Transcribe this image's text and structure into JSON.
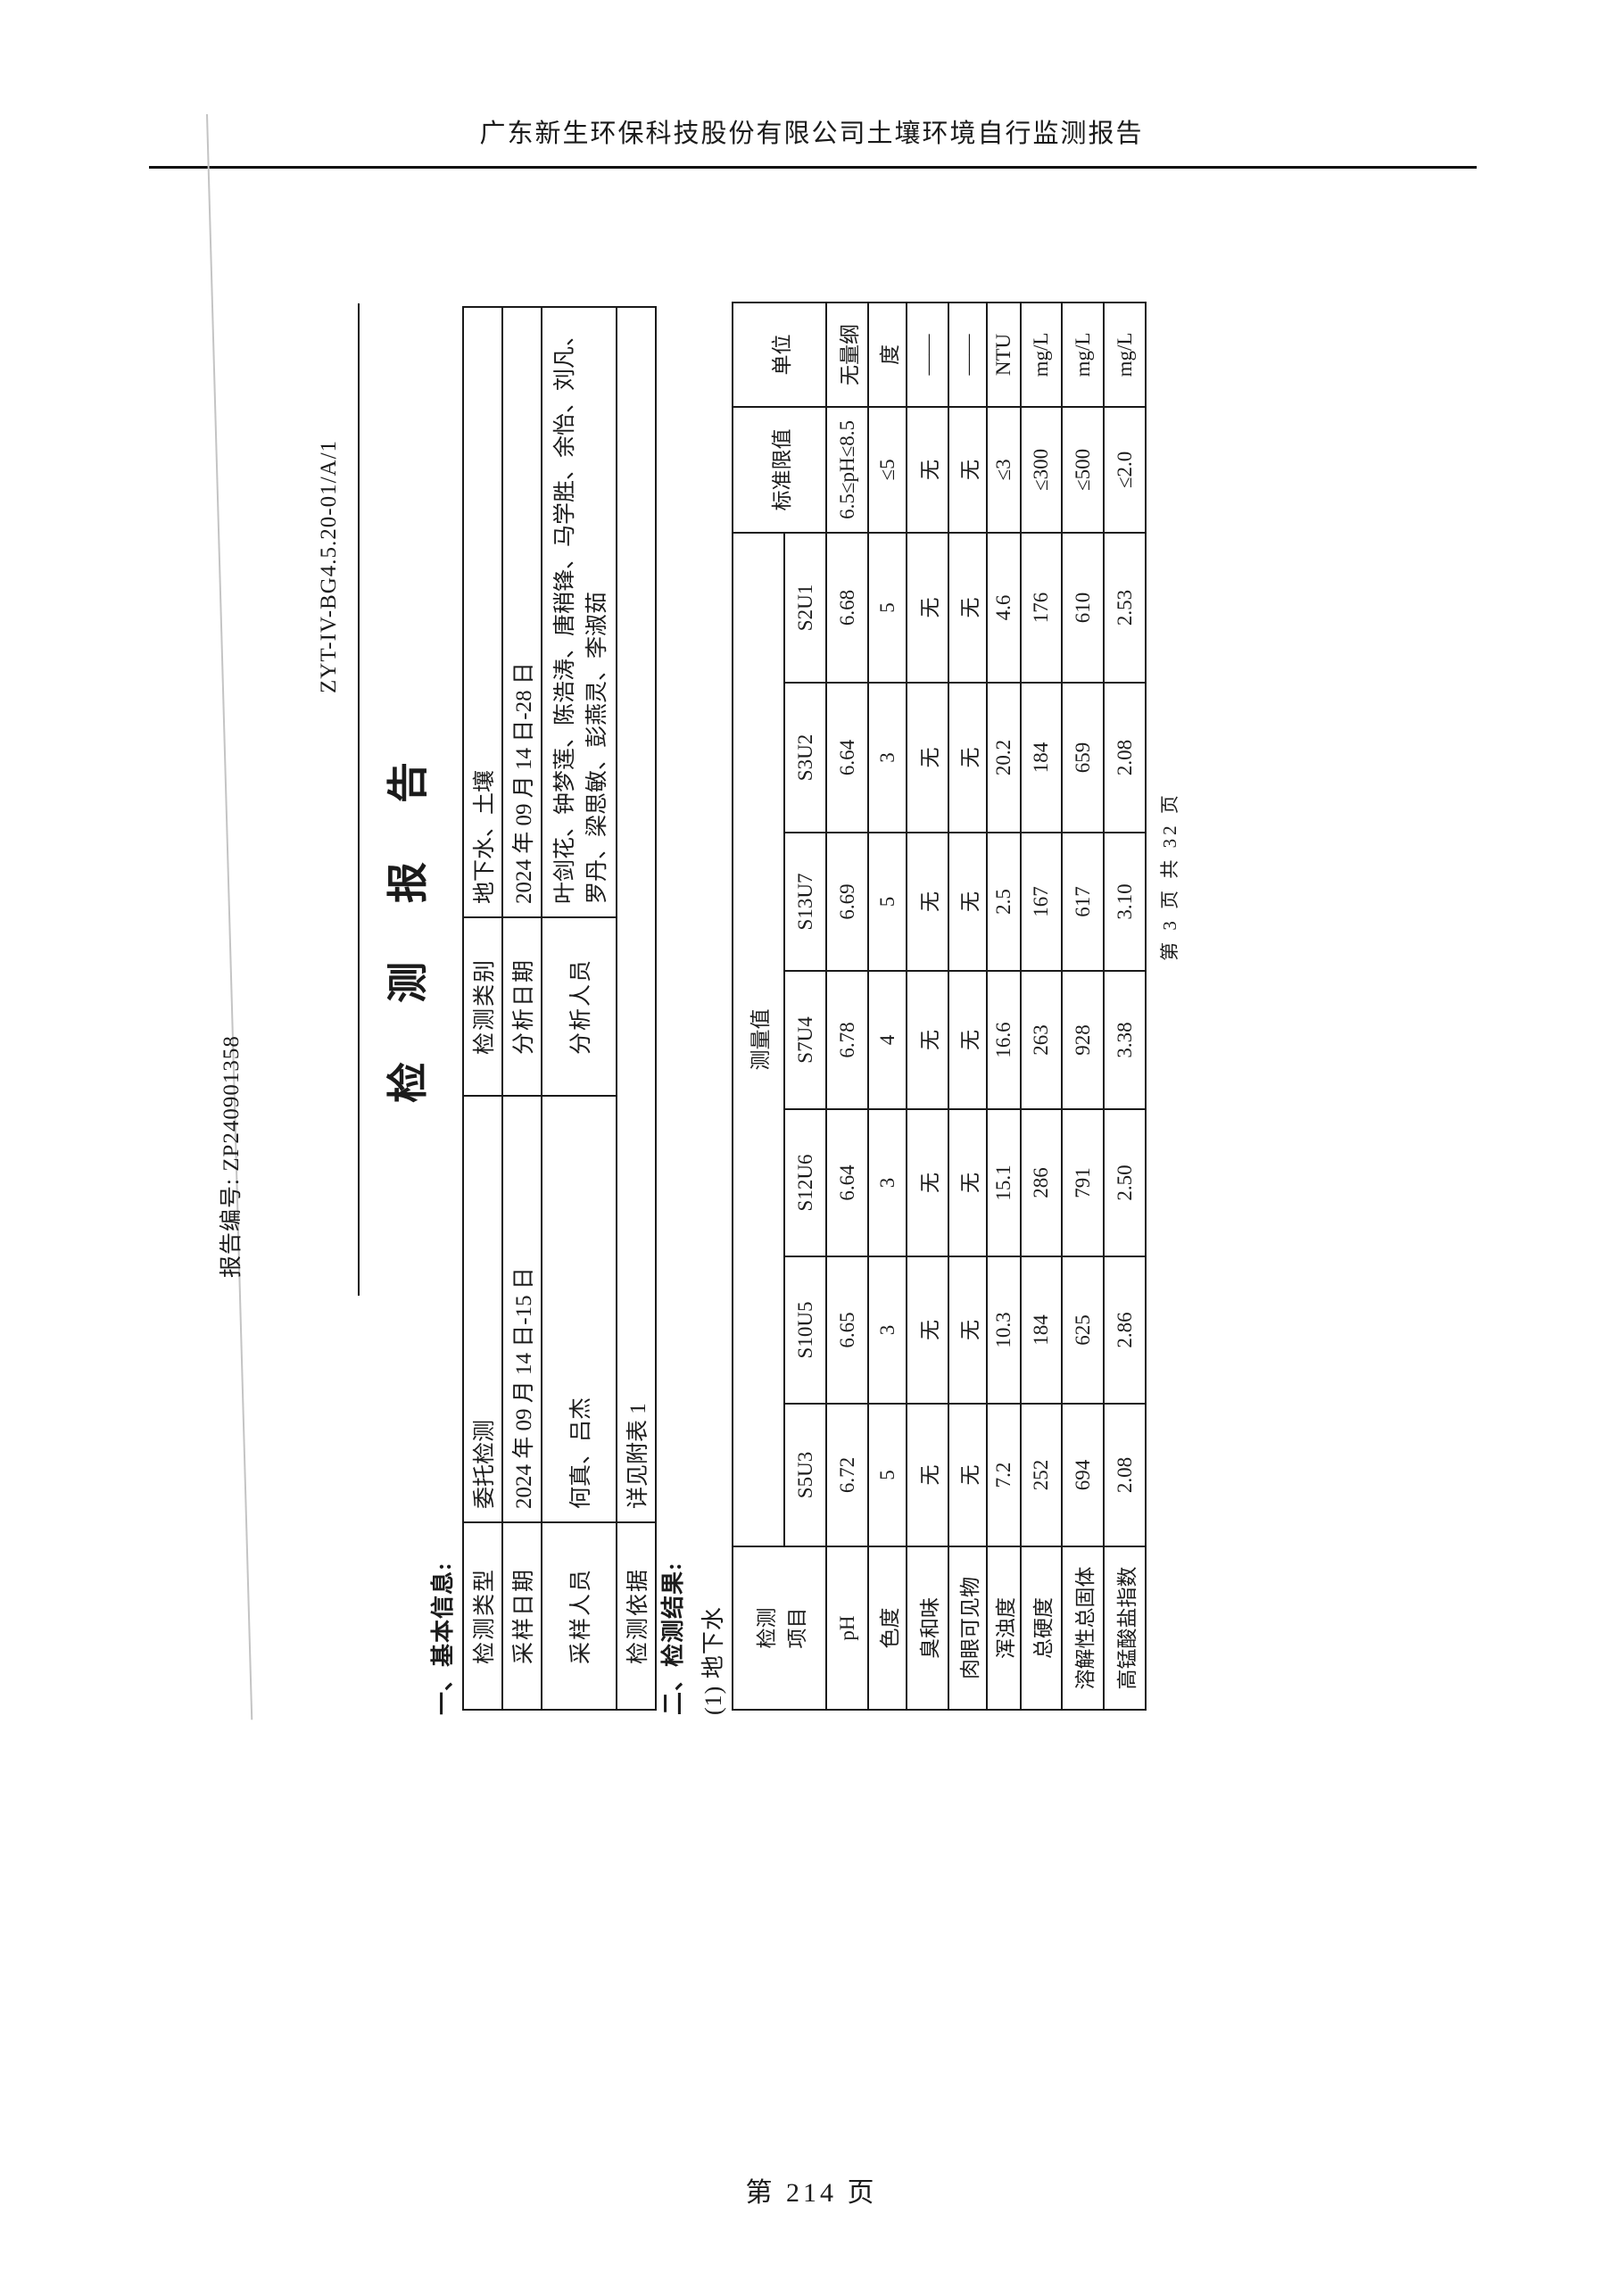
{
  "page_header": {
    "title": "广东新生环保科技股份有限公司土壤环境自行监测报告"
  },
  "report_header": {
    "report_no": "报告编号: ZP240901358",
    "doc_code": "ZYT-IV-BG4.5.20-01/A/1"
  },
  "report_title": "检测报告",
  "sections": {
    "basic_info_heading": "一、基本信息:",
    "results_heading": "二、检测结果:",
    "results_sub": "(1) 地下水"
  },
  "basic_info": {
    "rows": [
      {
        "cells": [
          {
            "t": "检测类型"
          },
          {
            "t": "委托检测"
          },
          {
            "t": "检测类别"
          },
          {
            "t": "地下水、土壤"
          }
        ]
      },
      {
        "cells": [
          {
            "t": "采样日期"
          },
          {
            "t": "2024 年 09 月 14 日-15 日"
          },
          {
            "t": "分析日期"
          },
          {
            "t": "2024 年 09 月 14 日-28 日"
          }
        ]
      },
      {
        "cells": [
          {
            "t": "采样人员"
          },
          {
            "t": "何真、吕杰"
          },
          {
            "t": "分析人员"
          },
          {
            "t": "叶剑花、钟梦莲、陈浩涛、唐稍锋、马学胜、余怡、刘凡、罗丹、梁思敏、彭燕灵、李淑茹"
          }
        ]
      },
      {
        "cells": [
          {
            "t": "检测依据"
          },
          {
            "t": "详见附表 1",
            "colspan": 3
          }
        ]
      }
    ]
  },
  "results_table": {
    "item_header_lines": [
      "检测",
      "项目"
    ],
    "measured_label": "测量值",
    "limit_label": "标准限值",
    "unit_label": "单位",
    "sample_ids": [
      "S5U3",
      "S10U5",
      "S12U6",
      "S7U4",
      "S13U7",
      "S3U2",
      "S2U1"
    ],
    "rows": [
      {
        "item": "pH",
        "values": [
          "6.72",
          "6.65",
          "6.64",
          "6.78",
          "6.69",
          "6.64",
          "6.68"
        ],
        "limit": "6.5≤pH≤8.5",
        "unit": "无量纲"
      },
      {
        "item": "色度",
        "values": [
          "5",
          "3",
          "3",
          "4",
          "5",
          "3",
          "5"
        ],
        "limit": "≤5",
        "unit": "度"
      },
      {
        "item": "臭和味",
        "values": [
          "无",
          "无",
          "无",
          "无",
          "无",
          "无",
          "无"
        ],
        "limit": "无",
        "unit": "——"
      },
      {
        "item": "肉眼可见物",
        "values": [
          "无",
          "无",
          "无",
          "无",
          "无",
          "无",
          "无"
        ],
        "limit": "无",
        "unit": "——"
      },
      {
        "item": "浑浊度",
        "values": [
          "7.2",
          "10.3",
          "15.1",
          "16.6",
          "2.5",
          "20.2",
          "4.6"
        ],
        "limit": "≤3",
        "unit": "NTU"
      },
      {
        "item": "总硬度",
        "values": [
          "252",
          "184",
          "286",
          "263",
          "167",
          "184",
          "176"
        ],
        "limit": "≤300",
        "unit": "mg/L"
      },
      {
        "item": "溶解性总固体",
        "values": [
          "694",
          "625",
          "791",
          "928",
          "617",
          "659",
          "610"
        ],
        "limit": "≤500",
        "unit": "mg/L"
      },
      {
        "item": "高锰酸盐指数",
        "values": [
          "2.08",
          "2.86",
          "2.50",
          "3.38",
          "3.10",
          "2.08",
          "2.53"
        ],
        "limit": "≤2.0",
        "unit": "mg/L"
      }
    ]
  },
  "inner_page_label": "第 3 页 共 32 页",
  "page_footer": "第 214 页"
}
